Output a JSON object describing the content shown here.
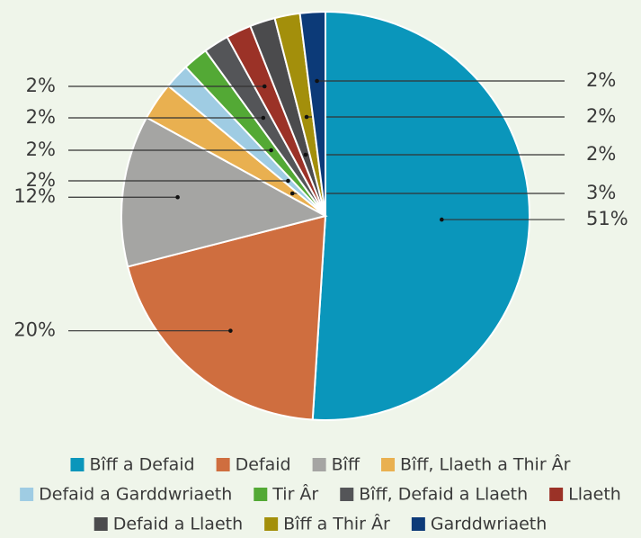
{
  "chart_data": {
    "type": "pie",
    "categories": [
      "Bîff a Defaid",
      "Defaid",
      "Bîff",
      "Bîff, Llaeth a Thir Âr",
      "Defaid a Garddwriaeth",
      "Tir Âr",
      "Bîff, Defaid a Llaeth",
      "Llaeth",
      "Defaid a Llaeth",
      "Bîff a Thir Âr",
      "Garddwriaeth"
    ],
    "values": [
      51,
      20,
      12,
      3,
      2,
      2,
      2,
      2,
      2,
      2,
      2
    ],
    "value_labels": [
      "51%",
      "20%",
      "12%",
      "3%",
      "2%",
      "2%",
      "2%",
      "2%",
      "2%",
      "2%",
      "2%"
    ],
    "colors": [
      "#0a96bb",
      "#cf6e3f",
      "#a5a5a3",
      "#e9b050",
      "#9fcce3",
      "#53a935",
      "#545558",
      "#9b3227",
      "#4b4b4d",
      "#a38f0b",
      "#0c3a78"
    ],
    "legend": "bottom"
  }
}
